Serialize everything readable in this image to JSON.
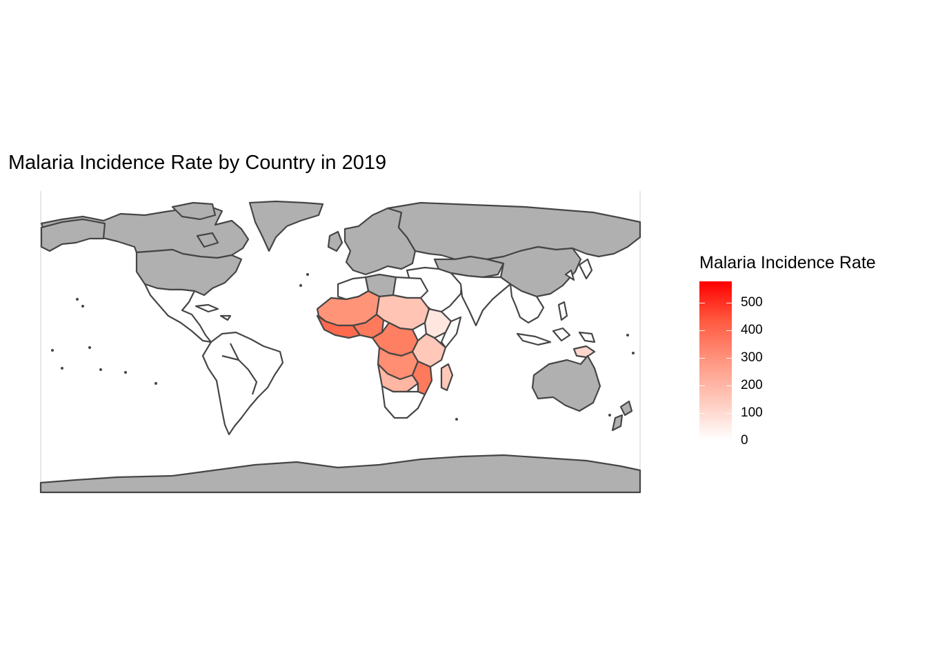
{
  "title": "Malaria Incidence Rate by Country in 2019",
  "legend": {
    "title": "Malaria Incidence Rate",
    "max_value": 570,
    "ticks": [
      "500",
      "400",
      "300",
      "200",
      "100",
      "0"
    ],
    "tick_values": [
      500,
      400,
      300,
      200,
      100,
      0
    ],
    "low_color": "#ffffff",
    "high_color": "#ff0000",
    "missing_color": "#b0b0b0",
    "border_color": "#454545"
  }
}
